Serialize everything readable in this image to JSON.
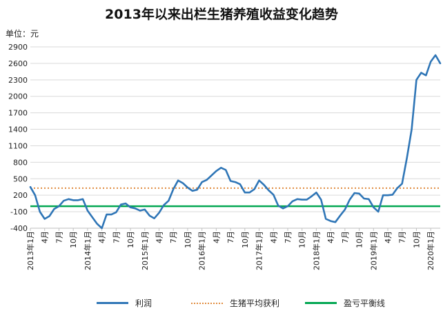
{
  "chart_data": {
    "type": "line",
    "title": "2013年以来出栏生猪养殖收益变化趋势",
    "unit_label": "单位：元",
    "ylim": [
      -400,
      2900
    ],
    "yticks": [
      -400,
      -100,
      200,
      500,
      800,
      1100,
      1400,
      1700,
      2000,
      2300,
      2600,
      2900
    ],
    "x_tick_labels": [
      "2013年1月",
      "4月",
      "7月",
      "10月",
      "2014年1月",
      "4月",
      "7月",
      "10月",
      "2015年1月",
      "4月",
      "7月",
      "10月",
      "2016年1月",
      "4月",
      "7月",
      "10月",
      "2017年1月",
      "4月",
      "7月",
      "10月",
      "2018年1月",
      "4月",
      "7月",
      "10月",
      "2019年1月",
      "4月",
      "7月",
      "10月",
      "2020年1月"
    ],
    "months": [
      "2013-01",
      "2013-02",
      "2013-03",
      "2013-04",
      "2013-05",
      "2013-06",
      "2013-07",
      "2013-08",
      "2013-09",
      "2013-10",
      "2013-11",
      "2013-12",
      "2014-01",
      "2014-02",
      "2014-03",
      "2014-04",
      "2014-05",
      "2014-06",
      "2014-07",
      "2014-08",
      "2014-09",
      "2014-10",
      "2014-11",
      "2014-12",
      "2015-01",
      "2015-02",
      "2015-03",
      "2015-04",
      "2015-05",
      "2015-06",
      "2015-07",
      "2015-08",
      "2015-09",
      "2015-10",
      "2015-11",
      "2015-12",
      "2016-01",
      "2016-02",
      "2016-03",
      "2016-04",
      "2016-05",
      "2016-06",
      "2016-07",
      "2016-08",
      "2016-09",
      "2016-10",
      "2016-11",
      "2016-12",
      "2017-01",
      "2017-02",
      "2017-03",
      "2017-04",
      "2017-05",
      "2017-06",
      "2017-07",
      "2017-08",
      "2017-09",
      "2017-10",
      "2017-11",
      "2017-12",
      "2018-01",
      "2018-02",
      "2018-03",
      "2018-04",
      "2018-05",
      "2018-06",
      "2018-07",
      "2018-08",
      "2018-09",
      "2018-10",
      "2018-11",
      "2018-12",
      "2019-01",
      "2019-02",
      "2019-03",
      "2019-04",
      "2019-05",
      "2019-06",
      "2019-07",
      "2019-08",
      "2019-09",
      "2019-10",
      "2019-11",
      "2019-12",
      "2020-01",
      "2020-02",
      "2020-03"
    ],
    "series": [
      {
        "name": "利润",
        "color": "#2e75b6",
        "style": "solid",
        "values": [
          350,
          200,
          -100,
          -230,
          -180,
          -50,
          0,
          100,
          130,
          110,
          110,
          130,
          -80,
          -200,
          -320,
          -400,
          -150,
          -150,
          -110,
          30,
          50,
          -20,
          -40,
          -80,
          -60,
          -170,
          -220,
          -120,
          20,
          100,
          310,
          470,
          420,
          340,
          280,
          300,
          440,
          480,
          560,
          640,
          700,
          660,
          460,
          440,
          400,
          250,
          250,
          310,
          470,
          390,
          290,
          210,
          10,
          -40,
          0,
          90,
          130,
          120,
          120,
          180,
          250,
          120,
          -230,
          -270,
          -290,
          -170,
          -60,
          120,
          240,
          230,
          140,
          130,
          -20,
          -100,
          200,
          200,
          210,
          330,
          410,
          880,
          1400,
          2300,
          2430,
          2380,
          2630,
          2750,
          2600
        ]
      },
      {
        "name": "生猪平均获利",
        "color": "#e08a3c",
        "style": "dotted",
        "constant": 330
      },
      {
        "name": "盈亏平衡线",
        "color": "#00a651",
        "style": "solid",
        "constant": 0
      }
    ]
  }
}
